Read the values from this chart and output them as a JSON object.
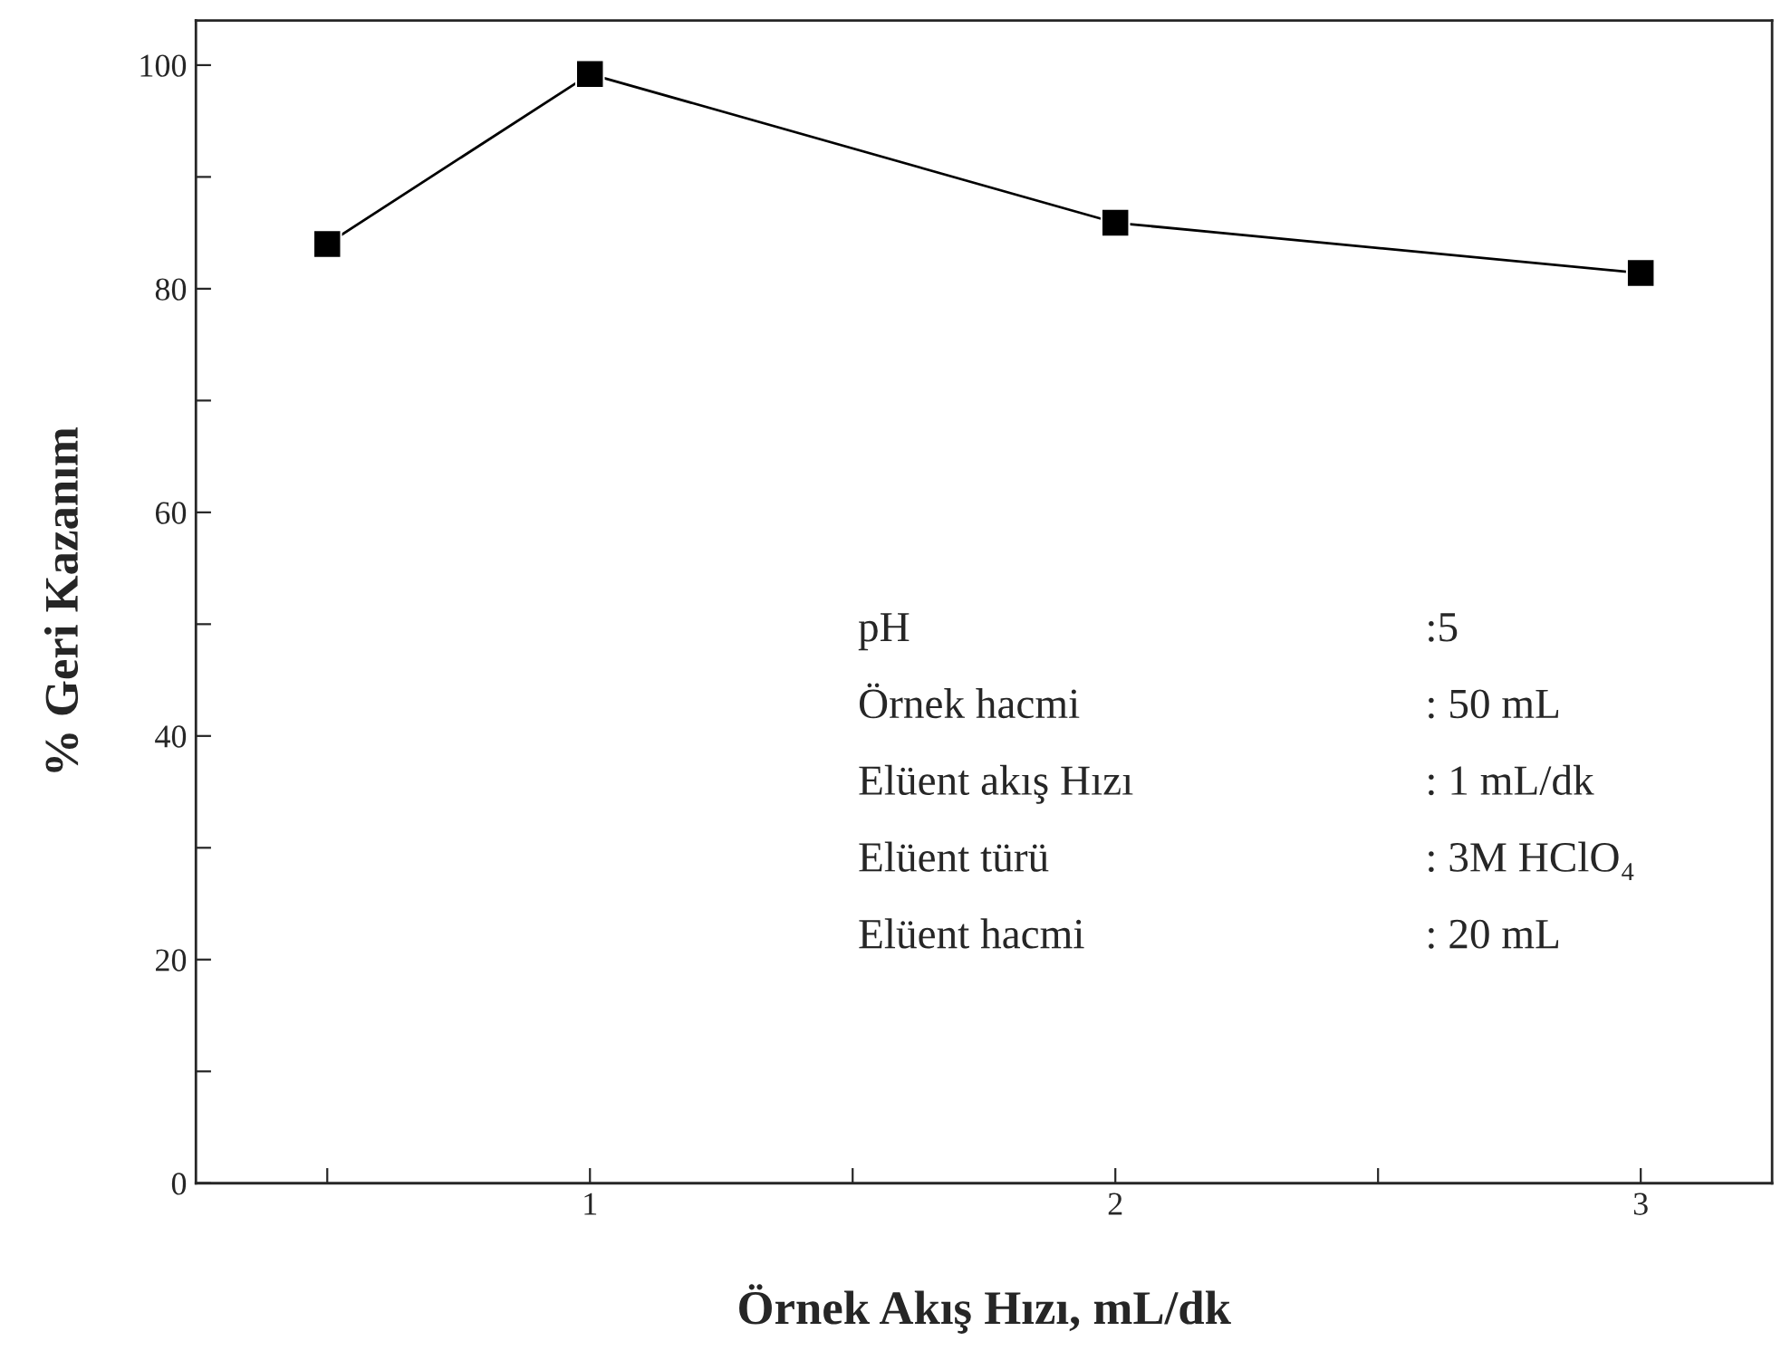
{
  "chart_data": {
    "type": "line",
    "xlabel": "Örnek Akış Hızı, mL/dk",
    "ylabel": "% Geri Kazanım",
    "x": [
      0.5,
      1,
      2,
      3
    ],
    "series": [
      {
        "color": "#000000",
        "values": [
          84.0,
          99.2,
          85.9,
          81.4
        ]
      }
    ],
    "marker": "square",
    "line_style": "solid",
    "grid": false,
    "legend": false,
    "xlim": [
      0.25,
      3.25
    ],
    "xticks": [
      {
        "value": 0.5,
        "label": null
      },
      1,
      {
        "value": 1.5,
        "label": null
      },
      2,
      {
        "value": 2.5,
        "label": null
      },
      3
    ],
    "ylim": [
      0,
      104
    ],
    "yticks": [
      0,
      {
        "value": 10,
        "label": null
      },
      20,
      {
        "value": 30,
        "label": null
      },
      40,
      {
        "value": 50,
        "label": null
      },
      60,
      {
        "value": 70,
        "label": null
      },
      80,
      {
        "value": 90,
        "label": null
      },
      100
    ],
    "annotations": [
      "pH",
      ":5",
      "Örnek hacmi",
      ": 50 mL",
      "Elüent akış Hızı",
      ": 1 mL/dk",
      "Elüent türü",
      ": 3M HClO₄",
      "Elüent hacmi",
      ": 20 mL"
    ]
  }
}
